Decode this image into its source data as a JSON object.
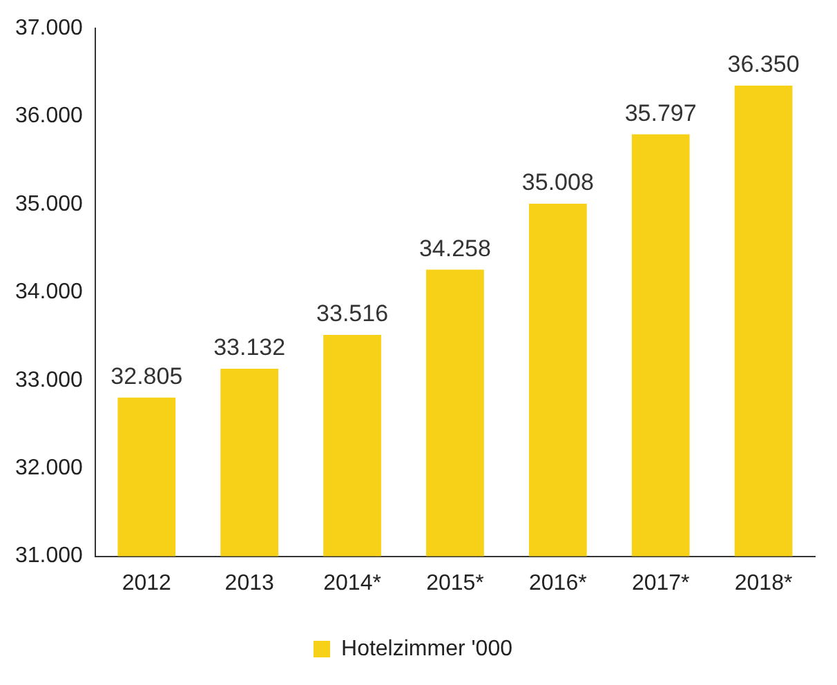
{
  "chart_data": {
    "type": "bar",
    "categories": [
      "2012",
      "2013",
      "2014*",
      "2015*",
      "2016*",
      "2017*",
      "2018*"
    ],
    "series": [
      {
        "name": "Hotelzimmer '000",
        "color": "#f7d117",
        "values": [
          32805,
          33132,
          33516,
          34258,
          35008,
          35797,
          36350
        ],
        "value_labels": [
          "32.805",
          "33.132",
          "33.516",
          "34.258",
          "35.008",
          "35.797",
          "36.350"
        ]
      }
    ],
    "ylim": [
      31000,
      37000
    ],
    "yticks": [
      {
        "value": 31000,
        "label": "31.000"
      },
      {
        "value": 32000,
        "label": "32.000"
      },
      {
        "value": 33000,
        "label": "33.000"
      },
      {
        "value": 34000,
        "label": "34.000"
      },
      {
        "value": 35000,
        "label": "35.000"
      },
      {
        "value": 36000,
        "label": "36.000"
      },
      {
        "value": 37000,
        "label": "37.000"
      }
    ],
    "grid": false,
    "legend": "bottom"
  }
}
